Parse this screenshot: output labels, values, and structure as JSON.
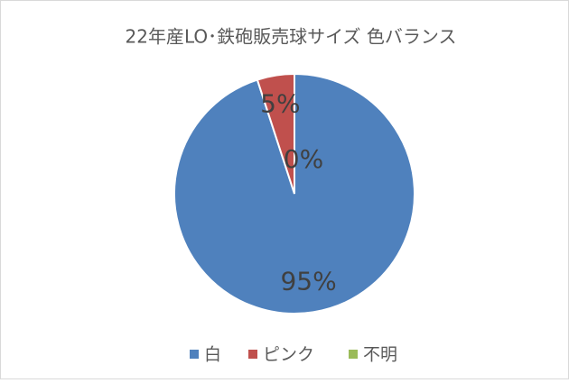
{
  "chart_data": {
    "type": "pie",
    "title": "22年産LO･鉄砲販売球サイズ 色バランス",
    "categories": [
      "白",
      "ピンク",
      "不明"
    ],
    "values": [
      95,
      5,
      0
    ],
    "value_labels": [
      "95%",
      "5%",
      "0%"
    ],
    "colors": [
      "#4f81bd",
      "#c0504d",
      "#9bbb59"
    ],
    "legend": "bottom"
  }
}
